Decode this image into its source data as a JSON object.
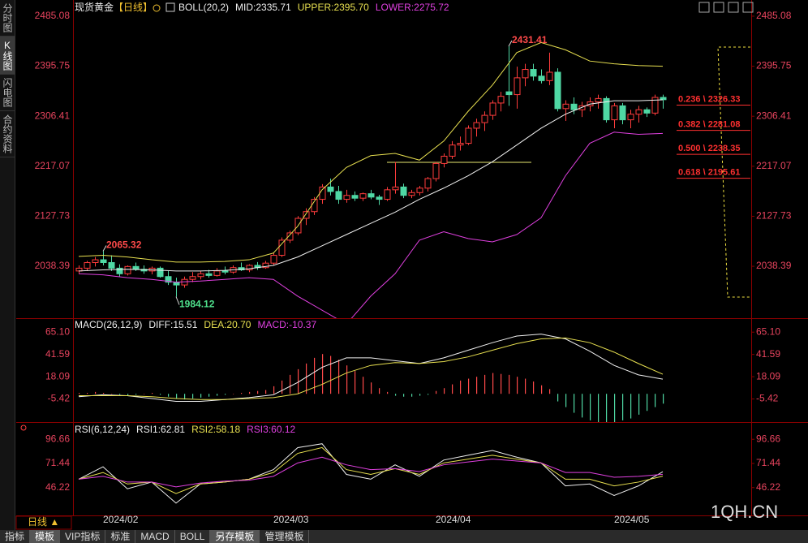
{
  "sidebar": [
    "分时图",
    "K线图",
    "闪电图",
    "合约资料"
  ],
  "chart_data": [
    {
      "type": "candlestick",
      "title": "现货黄金",
      "subtitle": "【日线】",
      "indicator": "BOLL(20,2)",
      "categories": [
        null,
        null,
        null,
        "2024/02",
        null,
        null,
        null,
        null,
        null,
        null,
        null,
        null,
        null,
        null,
        null,
        null,
        null,
        null,
        null,
        null,
        null,
        null,
        null,
        null,
        "2024/03",
        null,
        null,
        null,
        null,
        null,
        null,
        null,
        null,
        null,
        null,
        null,
        null,
        null,
        null,
        null,
        null,
        null,
        null,
        null,
        "2024/04",
        null,
        null,
        null,
        null,
        null,
        null,
        null,
        null,
        null,
        null,
        null,
        null,
        null,
        null,
        null,
        null,
        null,
        null,
        null,
        null,
        null,
        "2024/05",
        null,
        null,
        null,
        null,
        null,
        null
      ],
      "open": [
        2030,
        2035,
        2045,
        2050,
        2045,
        2035,
        2025,
        2038,
        2033,
        2030,
        2035,
        2020,
        2010,
        2005,
        2015,
        2020,
        2025,
        2022,
        2030,
        2028,
        2036,
        2032,
        2040,
        2036,
        2044,
        2058,
        2085,
        2098,
        2124,
        2136,
        2158,
        2180,
        2172,
        2158,
        2165,
        2160,
        2168,
        2162,
        2158,
        2175,
        2180,
        2165,
        2170,
        2178,
        2195,
        2222,
        2235,
        2255,
        2258,
        2285,
        2295,
        2308,
        2330,
        2350,
        2345,
        2375,
        2390,
        2378,
        2370,
        2385,
        2320,
        2328,
        2318,
        2325,
        2332,
        2338,
        2300,
        2325,
        2300,
        2310,
        2318,
        2312,
        2340
      ],
      "high": [
        2040,
        2048,
        2055,
        2065.32,
        2058,
        2042,
        2040,
        2045,
        2040,
        2038,
        2038,
        2030,
        2018,
        2020,
        2028,
        2030,
        2032,
        2035,
        2038,
        2040,
        2045,
        2042,
        2046,
        2048,
        2062,
        2090,
        2102,
        2128,
        2142,
        2162,
        2185,
        2195,
        2182,
        2175,
        2172,
        2170,
        2175,
        2166,
        2180,
        2225,
        2186,
        2175,
        2182,
        2198,
        2225,
        2240,
        2262,
        2270,
        2290,
        2302,
        2315,
        2335,
        2350,
        2431.41,
        2395,
        2400,
        2400,
        2390,
        2420,
        2392,
        2335,
        2340,
        2332,
        2340,
        2345,
        2342,
        2330,
        2330,
        2318,
        2325,
        2322,
        2345,
        2345
      ],
      "low": [
        2025,
        2030,
        2038,
        2040,
        2030,
        2020,
        2022,
        2030,
        2025,
        2024,
        2018,
        2005,
        1984.12,
        2000,
        2010,
        2015,
        2018,
        2020,
        2024,
        2025,
        2030,
        2028,
        2032,
        2034,
        2040,
        2055,
        2080,
        2094,
        2112,
        2130,
        2150,
        2165,
        2150,
        2152,
        2155,
        2155,
        2158,
        2148,
        2155,
        2168,
        2160,
        2160,
        2165,
        2172,
        2190,
        2215,
        2230,
        2245,
        2255,
        2270,
        2280,
        2300,
        2315,
        2325,
        2320,
        2360,
        2370,
        2365,
        2362,
        2315,
        2298,
        2310,
        2305,
        2315,
        2320,
        2295,
        2285,
        2292,
        2285,
        2295,
        2305,
        2308,
        2320
      ],
      "close": [
        2035,
        2045,
        2050,
        2045,
        2035,
        2025,
        2038,
        2033,
        2030,
        2035,
        2020,
        2010,
        2005,
        2015,
        2020,
        2025,
        2022,
        2030,
        2028,
        2036,
        2032,
        2040,
        2036,
        2044,
        2058,
        2085,
        2098,
        2124,
        2136,
        2158,
        2180,
        2172,
        2158,
        2165,
        2160,
        2168,
        2162,
        2158,
        2175,
        2180,
        2165,
        2170,
        2178,
        2195,
        2222,
        2235,
        2255,
        2258,
        2285,
        2295,
        2308,
        2330,
        2342,
        2345,
        2375,
        2390,
        2378,
        2370,
        2385,
        2320,
        2328,
        2318,
        2325,
        2332,
        2338,
        2300,
        2325,
        2300,
        2310,
        2318,
        2312,
        2340,
        2336
      ],
      "up_color": "#ff3c3c",
      "down_color": "#4fd8a4",
      "series": [
        {
          "name": "MID:2335.71",
          "color": "#f0f0f0",
          "x": [
            0,
            3,
            6,
            9,
            12,
            15,
            18,
            21,
            24,
            27,
            30,
            33,
            36,
            39,
            42,
            45,
            48,
            51,
            54,
            57,
            60,
            63,
            66,
            69,
            72
          ],
          "values": [
            2030,
            2032,
            2033,
            2032,
            2030,
            2030,
            2031,
            2034,
            2040,
            2055,
            2075,
            2095,
            2115,
            2135,
            2158,
            2178,
            2200,
            2225,
            2255,
            2285,
            2310,
            2328,
            2334,
            2334,
            2335.71
          ]
        },
        {
          "name": "UPPER:2395.70",
          "color": "#e8e050",
          "x": [
            0,
            3,
            6,
            9,
            12,
            15,
            18,
            21,
            24,
            27,
            30,
            33,
            36,
            39,
            42,
            45,
            48,
            51,
            54,
            57,
            60,
            63,
            66,
            69,
            72
          ],
          "values": [
            2056,
            2058,
            2055,
            2050,
            2046,
            2046,
            2047,
            2050,
            2062,
            2110,
            2175,
            2215,
            2236,
            2240,
            2228,
            2262,
            2315,
            2362,
            2420,
            2438,
            2425,
            2405,
            2400,
            2397,
            2395.7
          ]
        },
        {
          "name": "LOWER:2275.72",
          "color": "#e040e0",
          "x": [
            0,
            3,
            6,
            9,
            12,
            15,
            18,
            21,
            24,
            27,
            30,
            33,
            36,
            39,
            42,
            45,
            48,
            51,
            54,
            57,
            60,
            63,
            66,
            69,
            72
          ],
          "values": [
            2025,
            2023,
            2018,
            2015,
            2010,
            2012,
            2015,
            2018,
            2015,
            1985,
            1960,
            1935,
            1985,
            2025,
            2085,
            2100,
            2088,
            2082,
            2095,
            2125,
            2200,
            2258,
            2278,
            2274,
            2275.72
          ]
        }
      ],
      "price_labels": [
        {
          "x": 3,
          "value": 2065.32,
          "color": "#ff4a4a"
        },
        {
          "x": 53,
          "value": 2431.41,
          "color": "#ff4a4a"
        },
        {
          "x": 12,
          "value": 1984.12,
          "color": "#4fe08c"
        }
      ],
      "fib_levels": [
        {
          "value": 2326.33,
          "label": "0.236 \\ 2326.33"
        },
        {
          "value": 2281.08,
          "label": "0.382 \\ 2281.08"
        },
        {
          "value": 2238.35,
          "label": "0.500 \\ 2238.35"
        },
        {
          "value": 2195.61,
          "label": "0.618 \\ 2195.61"
        }
      ],
      "fib_color": "#ff3030",
      "ylim": [
        1945.7,
        2514
      ],
      "yticks": [
        2038.39,
        2127.73,
        2217.07,
        2306.41,
        2395.75,
        2485.08
      ]
    },
    {
      "type": "macd",
      "title": "MACD(26,12,9)",
      "series": [
        {
          "name": "DIFF:15.51",
          "color": "#f0f0f0",
          "x": [
            0,
            3,
            6,
            9,
            12,
            15,
            18,
            21,
            24,
            27,
            30,
            33,
            36,
            39,
            42,
            45,
            48,
            51,
            54,
            57,
            60,
            63,
            66,
            69,
            72
          ],
          "values": [
            -3,
            -1,
            -2,
            -5,
            -8,
            -8,
            -6,
            -4,
            -1,
            12,
            28,
            38,
            38,
            35,
            32,
            38,
            46,
            54,
            61,
            63,
            58,
            45,
            30,
            20,
            15.51
          ]
        },
        {
          "name": "DEA:20.70",
          "color": "#e8e050",
          "x": [
            0,
            3,
            6,
            9,
            12,
            15,
            18,
            21,
            24,
            27,
            30,
            33,
            36,
            39,
            42,
            45,
            48,
            51,
            54,
            57,
            60,
            63,
            66,
            69,
            72
          ],
          "values": [
            -2,
            -2,
            -2,
            -3,
            -5,
            -6,
            -6,
            -5,
            -4,
            0,
            10,
            22,
            30,
            33,
            32,
            34,
            39,
            46,
            53,
            58,
            59,
            54,
            44,
            32,
            20.7
          ]
        }
      ],
      "histogram": {
        "name": "MACD:-10.37",
        "color": "#e040e0",
        "up_color": "#ff4a4a",
        "down_color": "#4fd8a4",
        "values": [
          1,
          1,
          2,
          1,
          0,
          -1,
          -2,
          -1,
          0,
          1,
          -1,
          -3,
          -5,
          -6,
          -5,
          -4,
          -3,
          -2,
          -1,
          0,
          1,
          2,
          3,
          4,
          8,
          14,
          20,
          26,
          32,
          38,
          42,
          40,
          36,
          30,
          24,
          18,
          12,
          6,
          2,
          -2,
          -3,
          -3,
          -2,
          -1,
          3,
          6,
          10,
          14,
          16,
          18,
          20,
          22,
          21,
          20,
          18,
          16,
          13,
          9,
          5,
          -8,
          -14,
          -20,
          -25,
          -28,
          -30,
          -30,
          -30,
          -28,
          -26,
          -22,
          -18,
          -14,
          -10.37
        ]
      },
      "ylim": [
        -29.8,
        79
      ],
      "yticks": [
        -5.42,
        18.09,
        41.59,
        {
          "value": 65.1,
          "label": "65.10"
        }
      ]
    },
    {
      "type": "line",
      "title": "RSI(6,12,24)",
      "series": [
        {
          "name": "RSI1:62.81",
          "color": "#f0f0f0",
          "x": [
            0,
            3,
            6,
            9,
            12,
            15,
            18,
            21,
            24,
            27,
            30,
            33,
            36,
            39,
            42,
            45,
            48,
            51,
            54,
            57,
            60,
            63,
            66,
            69,
            72
          ],
          "values": [
            55,
            68,
            45,
            52,
            30,
            50,
            52,
            55,
            65,
            88,
            92,
            60,
            55,
            70,
            58,
            75,
            80,
            85,
            78,
            72,
            48,
            50,
            38,
            48,
            62.81
          ]
        },
        {
          "name": "RSI2:58.18",
          "color": "#e8e050",
          "x": [
            0,
            3,
            6,
            9,
            12,
            15,
            18,
            21,
            24,
            27,
            30,
            33,
            36,
            39,
            42,
            45,
            48,
            51,
            54,
            57,
            60,
            63,
            66,
            69,
            72
          ],
          "values": [
            55,
            62,
            50,
            52,
            40,
            50,
            52,
            55,
            62,
            82,
            88,
            65,
            60,
            66,
            60,
            72,
            76,
            80,
            76,
            72,
            55,
            55,
            48,
            52,
            58.18
          ]
        },
        {
          "name": "RSI3:60.12",
          "color": "#e040e0",
          "x": [
            0,
            3,
            6,
            9,
            12,
            15,
            18,
            21,
            24,
            27,
            30,
            33,
            36,
            39,
            42,
            45,
            48,
            51,
            54,
            57,
            60,
            63,
            66,
            69,
            72
          ],
          "values": [
            55,
            58,
            52,
            52,
            47,
            51,
            53,
            54,
            58,
            72,
            78,
            70,
            65,
            66,
            63,
            70,
            73,
            76,
            74,
            72,
            62,
            62,
            57,
            58,
            60.12
          ]
        }
      ],
      "ylim": [
        17.2,
        113.8
      ],
      "yticks": [
        46.22,
        71.44,
        96.66
      ]
    }
  ],
  "period_tab": "日线 ▲",
  "toolbar": [
    "指标",
    "模板",
    "VIP指标",
    "标准",
    "MACD",
    "BOLL",
    "另存模板",
    "管理模板"
  ],
  "watermark": "1QH.CN"
}
